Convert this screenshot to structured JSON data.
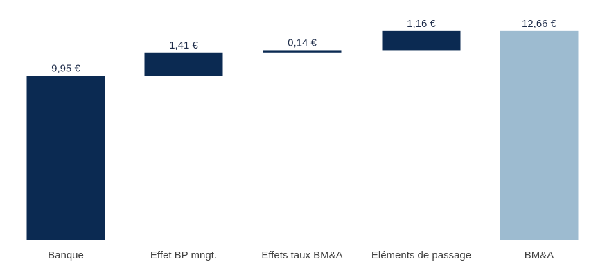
{
  "chart_data": {
    "type": "waterfall",
    "categories": [
      "Banque",
      "Effet BP mngt.",
      "Effets taux BM&A",
      "Eléments de passage",
      "BM&A"
    ],
    "values": [
      9.95,
      1.41,
      0.14,
      1.16,
      12.66
    ],
    "kinds": [
      "total",
      "increase",
      "increase",
      "increase",
      "total"
    ],
    "data_labels": [
      "9,95 €",
      "1,41 €",
      "0,14 €",
      "1,16 €",
      "12,66 €"
    ],
    "unit": "€",
    "ylim": [
      0,
      13.2
    ],
    "grid": false,
    "legend": "none",
    "colors": {
      "total": "#0b2a52",
      "increase": "#0b2a52",
      "final_total": "#9dbbd0",
      "axis": "#d9d9d9"
    }
  }
}
